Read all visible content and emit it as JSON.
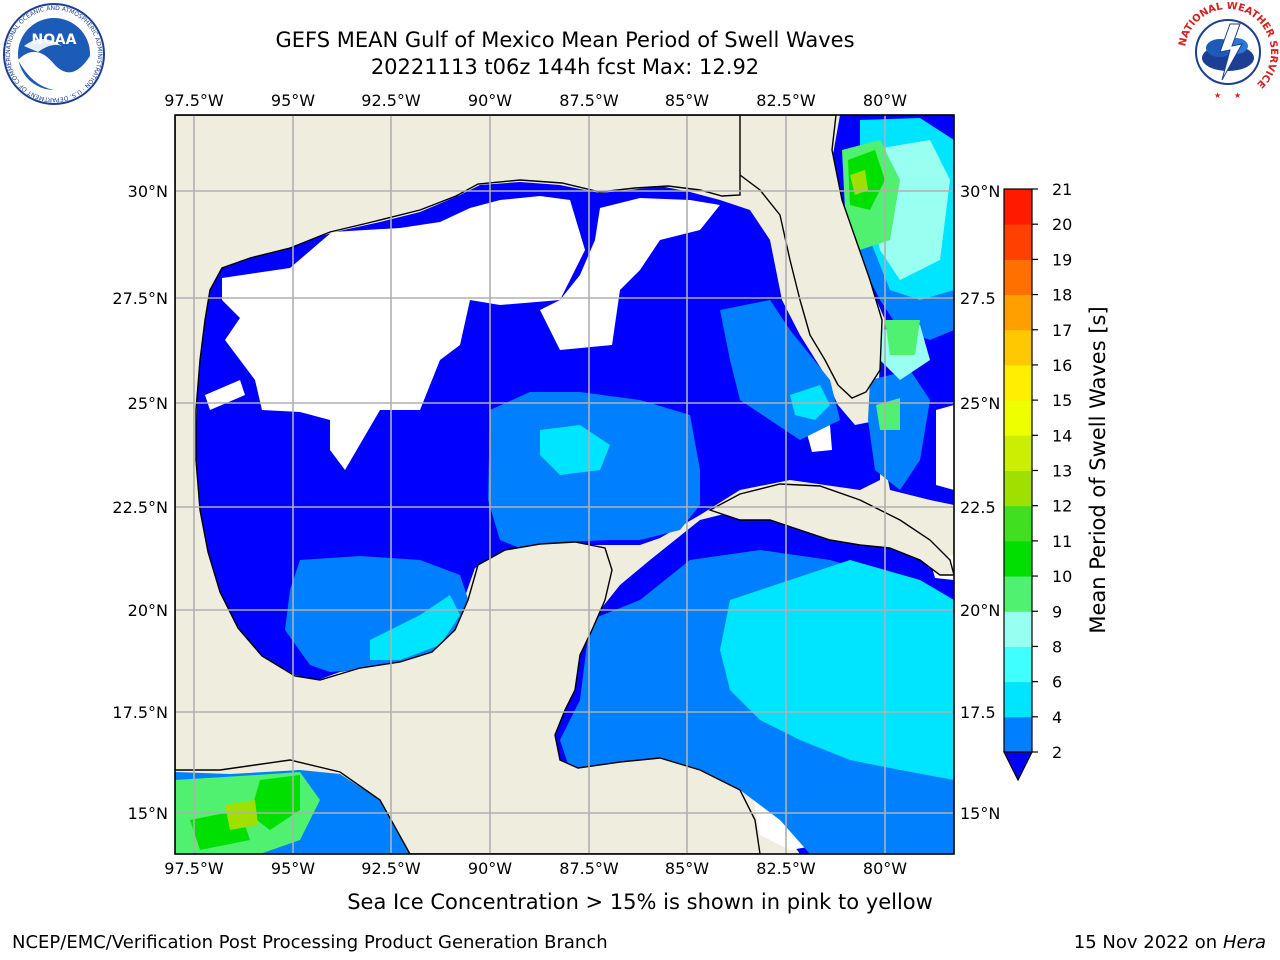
{
  "header": {
    "title": "GEFS MEAN Gulf of Mexico Mean Period of Swell Waves",
    "subtitle": "20221113 t06z 144h fcst   Max: 12.92"
  },
  "map": {
    "lon_labels": [
      "97.5°W",
      "95°W",
      "92.5°W",
      "90°W",
      "87.5°W",
      "85°W",
      "82.5°W",
      "80°W"
    ],
    "lat_labels_left": [
      "30°N",
      "27.5°N",
      "25°N",
      "22.5°N",
      "20°N",
      "17.5°N",
      "15°N"
    ],
    "lat_labels_right": [
      "30°N",
      "27.5",
      "25°N",
      "22.5",
      "20°N",
      "17.5",
      "15°N"
    ],
    "colors": {
      "land": "#efedde",
      "no_data_sea": "#ffffff",
      "grid": "#b0b0b0",
      "coast": "#000000"
    }
  },
  "colorbar": {
    "label": "Mean Period of Swell Waves [s]",
    "tick_labels": [
      "2",
      "4",
      "6",
      "8",
      "9",
      "10",
      "11",
      "12",
      "13",
      "14",
      "15",
      "16",
      "17",
      "18",
      "19",
      "20",
      "21"
    ],
    "colors": [
      "#0000ff",
      "#0080ff",
      "#00e5ff",
      "#40ffff",
      "#99fff0",
      "#50f070",
      "#00e000",
      "#40e020",
      "#a0e000",
      "#ccee00",
      "#eeff00",
      "#ffee00",
      "#ffc800",
      "#ffa000",
      "#ff7000",
      "#ff4000",
      "#ff1a00",
      "#ff0000"
    ]
  },
  "footer": {
    "sea_ice_note": "Sea Ice Concentration > 15% is shown in pink to yellow",
    "credit": "NCEP/EMC/Verification Post Processing Product Generation Branch",
    "date": "15 Nov 2022 on",
    "host": "Hera"
  },
  "logos": {
    "left": "NOAA",
    "left_ring_text": "NATIONAL OCEANIC AND ATMOSPHERIC ADMINISTRATION · U.S. DEPARTMENT OF COMMERCE",
    "right_ring_text": "NATIONAL WEATHER SERVICE"
  }
}
